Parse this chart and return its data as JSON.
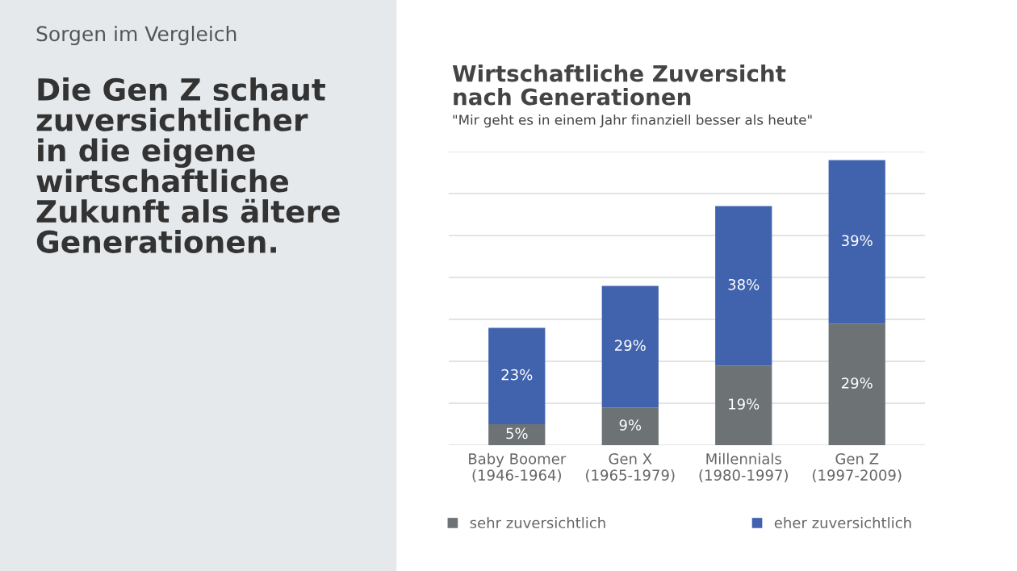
{
  "chart_data": {
    "type": "bar",
    "stacked": true,
    "title": "Wirtschaftliche Zuversicht\nnach Generationen",
    "subtitle": "\"Mir geht es in einem Jahr finanziell besser als heute\"",
    "annotations": [
      "Sorgen im Vergleich",
      "Die Gen Z schaut\nzuversichtlicher\nin die eigene\nwirtschaftliche\nZukunft als ältere\nGenerationen."
    ],
    "categories": [
      "Baby Boomer\n(1946-1964)",
      "Gen X\n(1965-1979)",
      "Millennials\n(1980-1997)",
      "Gen Z\n(1997-2009)"
    ],
    "series": [
      {
        "name": "sehr zuversichtlich",
        "color": "#6d7375",
        "values": [
          5,
          9,
          19,
          29
        ],
        "value_labels": [
          "5%",
          "9%",
          "19%",
          "29%"
        ]
      },
      {
        "name": "eher zuversichtlich",
        "color": "#4163ae",
        "values": [
          23,
          29,
          38,
          39
        ],
        "value_labels": [
          "23%",
          "29%",
          "38%",
          "39%"
        ]
      }
    ],
    "ylim": [
      0,
      70
    ],
    "yticks": [
      {
        "value": 0,
        "label": null
      },
      {
        "value": 10,
        "label": null
      },
      {
        "value": 20,
        "label": null
      },
      {
        "value": 30,
        "label": null
      },
      {
        "value": 40,
        "label": null
      },
      {
        "value": 50,
        "label": null
      },
      {
        "value": 60,
        "label": null
      },
      {
        "value": 70,
        "label": null
      }
    ],
    "grid": "y",
    "legend": "bottom",
    "tick_labels": "x"
  }
}
